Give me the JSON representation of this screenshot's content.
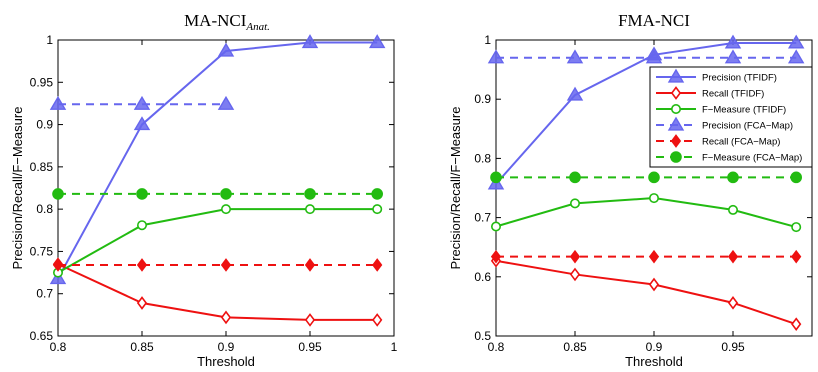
{
  "chart_data": [
    {
      "type": "line",
      "title": "MA-NCI",
      "title_subscript": "Anat.",
      "xlabel": "Threshold",
      "ylabel": "Precision/Recall/F−Measure",
      "xlim": [
        0.8,
        1.0
      ],
      "ylim": [
        0.65,
        1.0
      ],
      "xticks": [
        0.8,
        0.85,
        0.9,
        0.95,
        1.0
      ],
      "xticklabels": [
        "0.8",
        "0.85",
        "0.9",
        "0.95",
        "1"
      ],
      "yticks": [
        0.65,
        0.7,
        0.75,
        0.8,
        0.85,
        0.9,
        0.95,
        1.0
      ],
      "yticklabels": [
        "0.65",
        "0.7",
        "0.75",
        "0.8",
        "0.85",
        "0.9",
        "0.95",
        "1"
      ],
      "x": [
        0.8,
        0.85,
        0.9,
        0.95,
        0.99
      ],
      "legend_position": "none",
      "series": [
        {
          "name": "Precision (TFIDF)",
          "color": "#6666ee",
          "marker": "triangle",
          "dashed": false,
          "values": [
            0.718,
            0.9,
            0.987,
            0.997,
            0.997
          ]
        },
        {
          "name": "Recall (TFIDF)",
          "color": "#ee1111",
          "marker": "diamond-open",
          "dashed": false,
          "values": [
            0.735,
            0.689,
            0.672,
            0.669,
            0.669
          ]
        },
        {
          "name": "F−Measure (TFIDF)",
          "color": "#22bb11",
          "marker": "circle-open",
          "dashed": false,
          "values": [
            0.725,
            0.781,
            0.8,
            0.8,
            0.8
          ]
        },
        {
          "name": "Precision (FCA−Map)",
          "color": "#6666ee",
          "marker": "triangle",
          "dashed": true,
          "values": [
            0.924,
            0.924,
            0.924,
            null,
            null
          ]
        },
        {
          "name": "Recall (FCA−Map)",
          "color": "#ee1111",
          "marker": "diamond",
          "dashed": true,
          "values": [
            0.734,
            0.734,
            0.734,
            0.734,
            0.734
          ]
        },
        {
          "name": "F−Measure (FCA−Map)",
          "color": "#22bb11",
          "marker": "circle",
          "dashed": true,
          "values": [
            0.818,
            0.818,
            0.818,
            0.818,
            0.818
          ]
        }
      ]
    },
    {
      "type": "line",
      "title": "FMA-NCI",
      "xlabel": "Threshold",
      "ylabel": "Precision/Recall/F−Measure",
      "xlim": [
        0.8,
        1.0
      ],
      "ylim": [
        0.5,
        1.0
      ],
      "xticks": [
        0.8,
        0.85,
        0.9,
        0.95
      ],
      "xticklabels": [
        "0.8",
        "0.85",
        "0.9",
        "0.95"
      ],
      "yticks": [
        0.5,
        0.6,
        0.7,
        0.8,
        0.9,
        1.0
      ],
      "yticklabels": [
        "0.5",
        "0.6",
        "0.7",
        "0.8",
        "0.9",
        "1"
      ],
      "x": [
        0.8,
        0.85,
        0.9,
        0.95,
        0.99
      ],
      "legend_position": "top-right",
      "series": [
        {
          "name": "Precision (TFIDF)",
          "color": "#6666ee",
          "marker": "triangle",
          "dashed": false,
          "values": [
            0.757,
            0.907,
            0.975,
            0.995,
            0.995
          ]
        },
        {
          "name": "Recall (TFIDF)",
          "color": "#ee1111",
          "marker": "diamond-open",
          "dashed": false,
          "values": [
            0.627,
            0.604,
            0.587,
            0.556,
            0.52
          ]
        },
        {
          "name": "F−Measure (TFIDF)",
          "color": "#22bb11",
          "marker": "circle-open",
          "dashed": false,
          "values": [
            0.685,
            0.724,
            0.733,
            0.713,
            0.684
          ]
        },
        {
          "name": "Precision (FCA−Map)",
          "color": "#6666ee",
          "marker": "triangle",
          "dashed": true,
          "values": [
            0.97,
            0.97,
            0.97,
            0.97,
            0.97
          ]
        },
        {
          "name": "Recall (FCA−Map)",
          "color": "#ee1111",
          "marker": "diamond",
          "dashed": true,
          "values": [
            0.634,
            0.634,
            0.634,
            0.634,
            0.634
          ]
        },
        {
          "name": "F−Measure (FCA−Map)",
          "color": "#22bb11",
          "marker": "circle",
          "dashed": true,
          "values": [
            0.768,
            0.768,
            0.768,
            0.768,
            0.768
          ]
        }
      ]
    }
  ]
}
